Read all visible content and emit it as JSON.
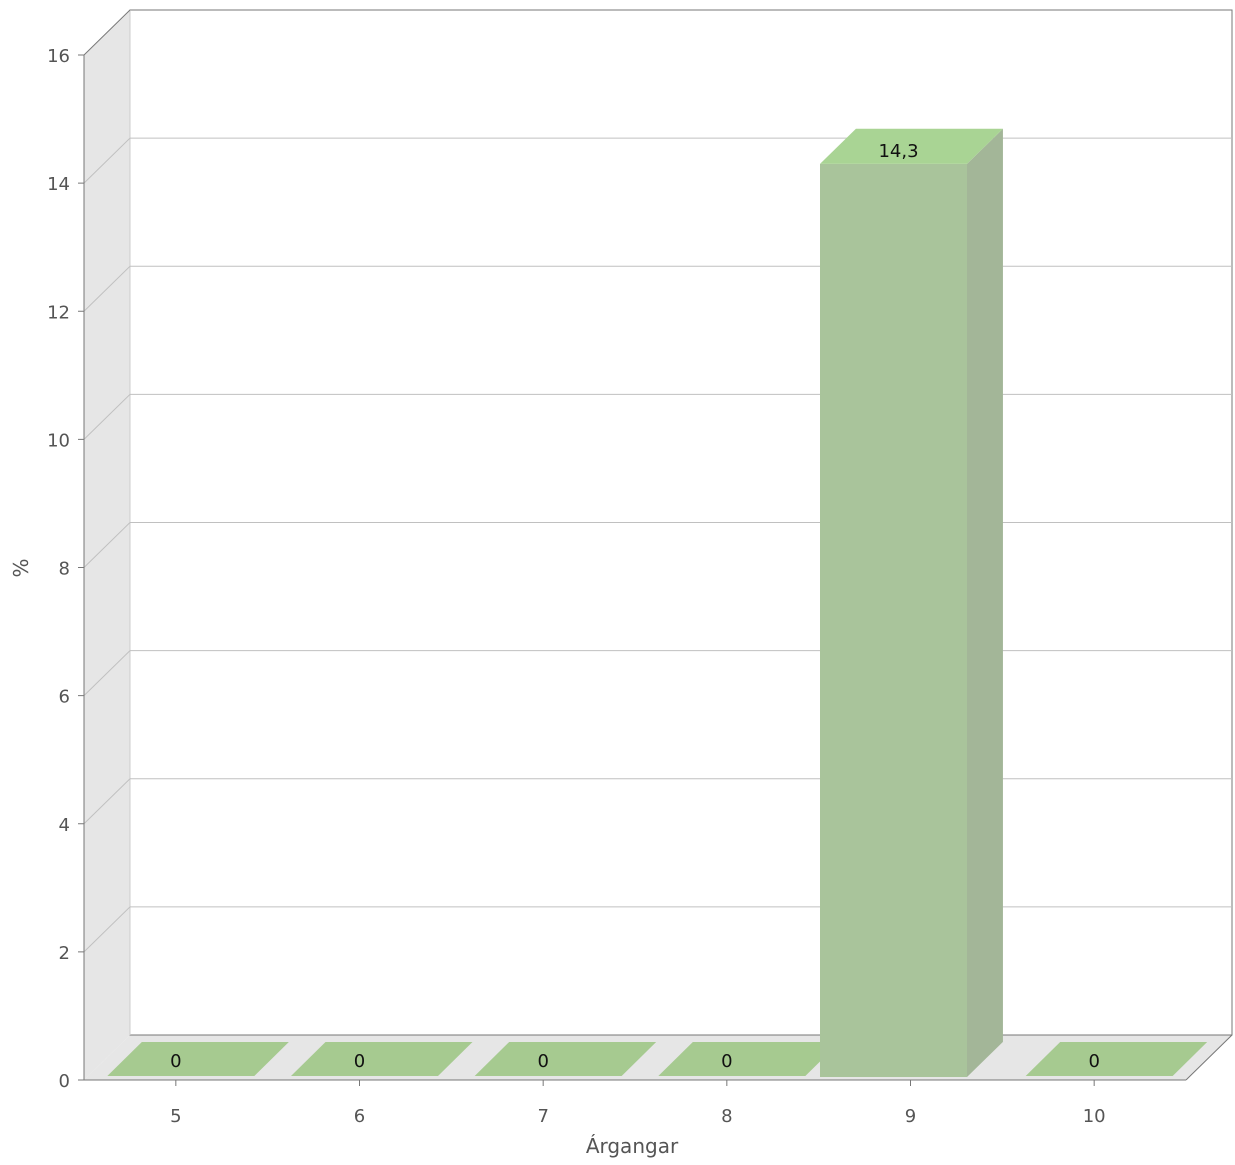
{
  "chart_data": {
    "type": "bar",
    "style": "3d",
    "categories": [
      "5",
      "6",
      "7",
      "8",
      "9",
      "10"
    ],
    "values": [
      0,
      0,
      0,
      0,
      14.3,
      0
    ],
    "value_labels": [
      "0",
      "0",
      "0",
      "0",
      "14,3",
      "0"
    ],
    "xlabel": "Árgangar",
    "ylabel": "%",
    "ylim": [
      0,
      16
    ],
    "yticks": [
      "0",
      "2",
      "4",
      "6",
      "8",
      "10",
      "12",
      "14",
      "16"
    ],
    "grid": true,
    "colors": {
      "bar_front": "#a9c49b",
      "bar_side": "#a3b698",
      "bar_top": "#a9d494",
      "flat_bar": "#a6ca90",
      "wall": "#e6e6e6",
      "grid": "#c0c0c0",
      "axis": "#777777"
    }
  }
}
